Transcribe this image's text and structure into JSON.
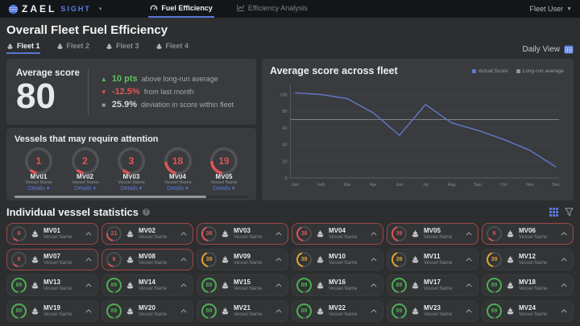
{
  "header": {
    "brand": {
      "name": "ZAEL",
      "suffix": "SIGHT"
    },
    "nav_tabs": [
      {
        "label": "Fuel Efficiency",
        "active": true
      },
      {
        "label": "Efficiency Analysis",
        "active": false
      }
    ],
    "user_menu": "Fleet User"
  },
  "page": {
    "title": "Overall Fleet Fuel Efficiency",
    "fleet_tabs": [
      {
        "label": "Fleet 1",
        "active": true
      },
      {
        "label": "Fleet 2",
        "active": false
      },
      {
        "label": "Fleet 3",
        "active": false
      },
      {
        "label": "Fleet 4",
        "active": false
      }
    ],
    "view_selector": "Daily View"
  },
  "average_score": {
    "label": "Average score",
    "value": "80",
    "metrics": [
      {
        "glyph": "▲",
        "value": "10 pts",
        "text": "above long-run average"
      },
      {
        "glyph": "▼",
        "value": "-12.5%",
        "text": "from last month"
      },
      {
        "glyph": "■",
        "value": "25.9%",
        "text": "deviation in score within fleet"
      }
    ]
  },
  "attention": {
    "title": "Vessels that may require attention",
    "details_label": "Details",
    "subtitle": "Vessel Name",
    "vessels": [
      {
        "rank": "1",
        "name": "MV01"
      },
      {
        "rank": "2",
        "name": "MV02"
      },
      {
        "rank": "3",
        "name": "MV03"
      },
      {
        "rank": "18",
        "name": "MV04"
      },
      {
        "rank": "19",
        "name": "MV05"
      }
    ]
  },
  "chart": {
    "title": "Average score across fleet",
    "legend": [
      {
        "label": "Actual Score",
        "color": "#5d78d8"
      },
      {
        "label": "Long-run average",
        "color": "#8d9094"
      }
    ],
    "chart_data": {
      "type": "line",
      "x": [
        "Jan",
        "Feb",
        "Mar",
        "Apr",
        "Jun",
        "Jul",
        "Aug",
        "Sep",
        "Oct",
        "Nov",
        "Dec"
      ],
      "series": [
        {
          "name": "Actual Score",
          "values": [
            102,
            100,
            95,
            78,
            51,
            88,
            66,
            57,
            46,
            33,
            13
          ]
        },
        {
          "name": "Long-run average",
          "values": [
            70,
            70,
            70,
            70,
            70,
            70,
            70,
            70,
            70,
            70,
            70
          ]
        }
      ],
      "long_run_average": 70,
      "yticks": [
        0,
        20,
        40,
        60,
        80,
        100
      ],
      "ylim": [
        0,
        110
      ],
      "grid": true,
      "legend_position": "top-right",
      "line_color": "#6378cd",
      "average_line_color": "#8a8d90"
    }
  },
  "vessel_stats": {
    "title": "Individual vessel statistics",
    "subtitle": "Vessel Name",
    "level_colors": {
      "critical": "#e05555",
      "warning": "#e2a233",
      "good": "#4cae50"
    },
    "cards": [
      {
        "id": "MV01",
        "score": 9,
        "level": "critical",
        "alert": true
      },
      {
        "id": "MV02",
        "score": 21,
        "level": "critical",
        "alert": true
      },
      {
        "id": "MV03",
        "score": 38,
        "level": "critical",
        "alert": true
      },
      {
        "id": "MV04",
        "score": 38,
        "level": "critical",
        "alert": true
      },
      {
        "id": "MV05",
        "score": 39,
        "level": "critical",
        "alert": true
      },
      {
        "id": "MV06",
        "score": 9,
        "level": "critical",
        "alert": true
      },
      {
        "id": "MV07",
        "score": 9,
        "level": "critical",
        "alert": true
      },
      {
        "id": "MV08",
        "score": 9,
        "level": "critical",
        "alert": true
      },
      {
        "id": "MV09",
        "score": 39,
        "level": "warning",
        "alert": false
      },
      {
        "id": "MV10",
        "score": 39,
        "level": "warning",
        "alert": false
      },
      {
        "id": "MV11",
        "score": 39,
        "level": "warning",
        "alert": false
      },
      {
        "id": "MV12",
        "score": 39,
        "level": "warning",
        "alert": false
      },
      {
        "id": "MV13",
        "score": 89,
        "level": "good",
        "alert": false
      },
      {
        "id": "MV14",
        "score": 89,
        "level": "good",
        "alert": false
      },
      {
        "id": "MV15",
        "score": 89,
        "level": "good",
        "alert": false
      },
      {
        "id": "MV16",
        "score": 89,
        "level": "good",
        "alert": false
      },
      {
        "id": "MV17",
        "score": 89,
        "level": "good",
        "alert": false
      },
      {
        "id": "MV18",
        "score": 89,
        "level": "good",
        "alert": false
      },
      {
        "id": "MV19",
        "score": 89,
        "level": "good",
        "alert": false
      },
      {
        "id": "MV20",
        "score": 89,
        "level": "good",
        "alert": false
      },
      {
        "id": "MV21",
        "score": 89,
        "level": "good",
        "alert": false
      },
      {
        "id": "MV22",
        "score": 89,
        "level": "good",
        "alert": false
      },
      {
        "id": "MV23",
        "score": 89,
        "level": "good",
        "alert": false
      },
      {
        "id": "MV24",
        "score": 89,
        "level": "good",
        "alert": false
      }
    ]
  }
}
